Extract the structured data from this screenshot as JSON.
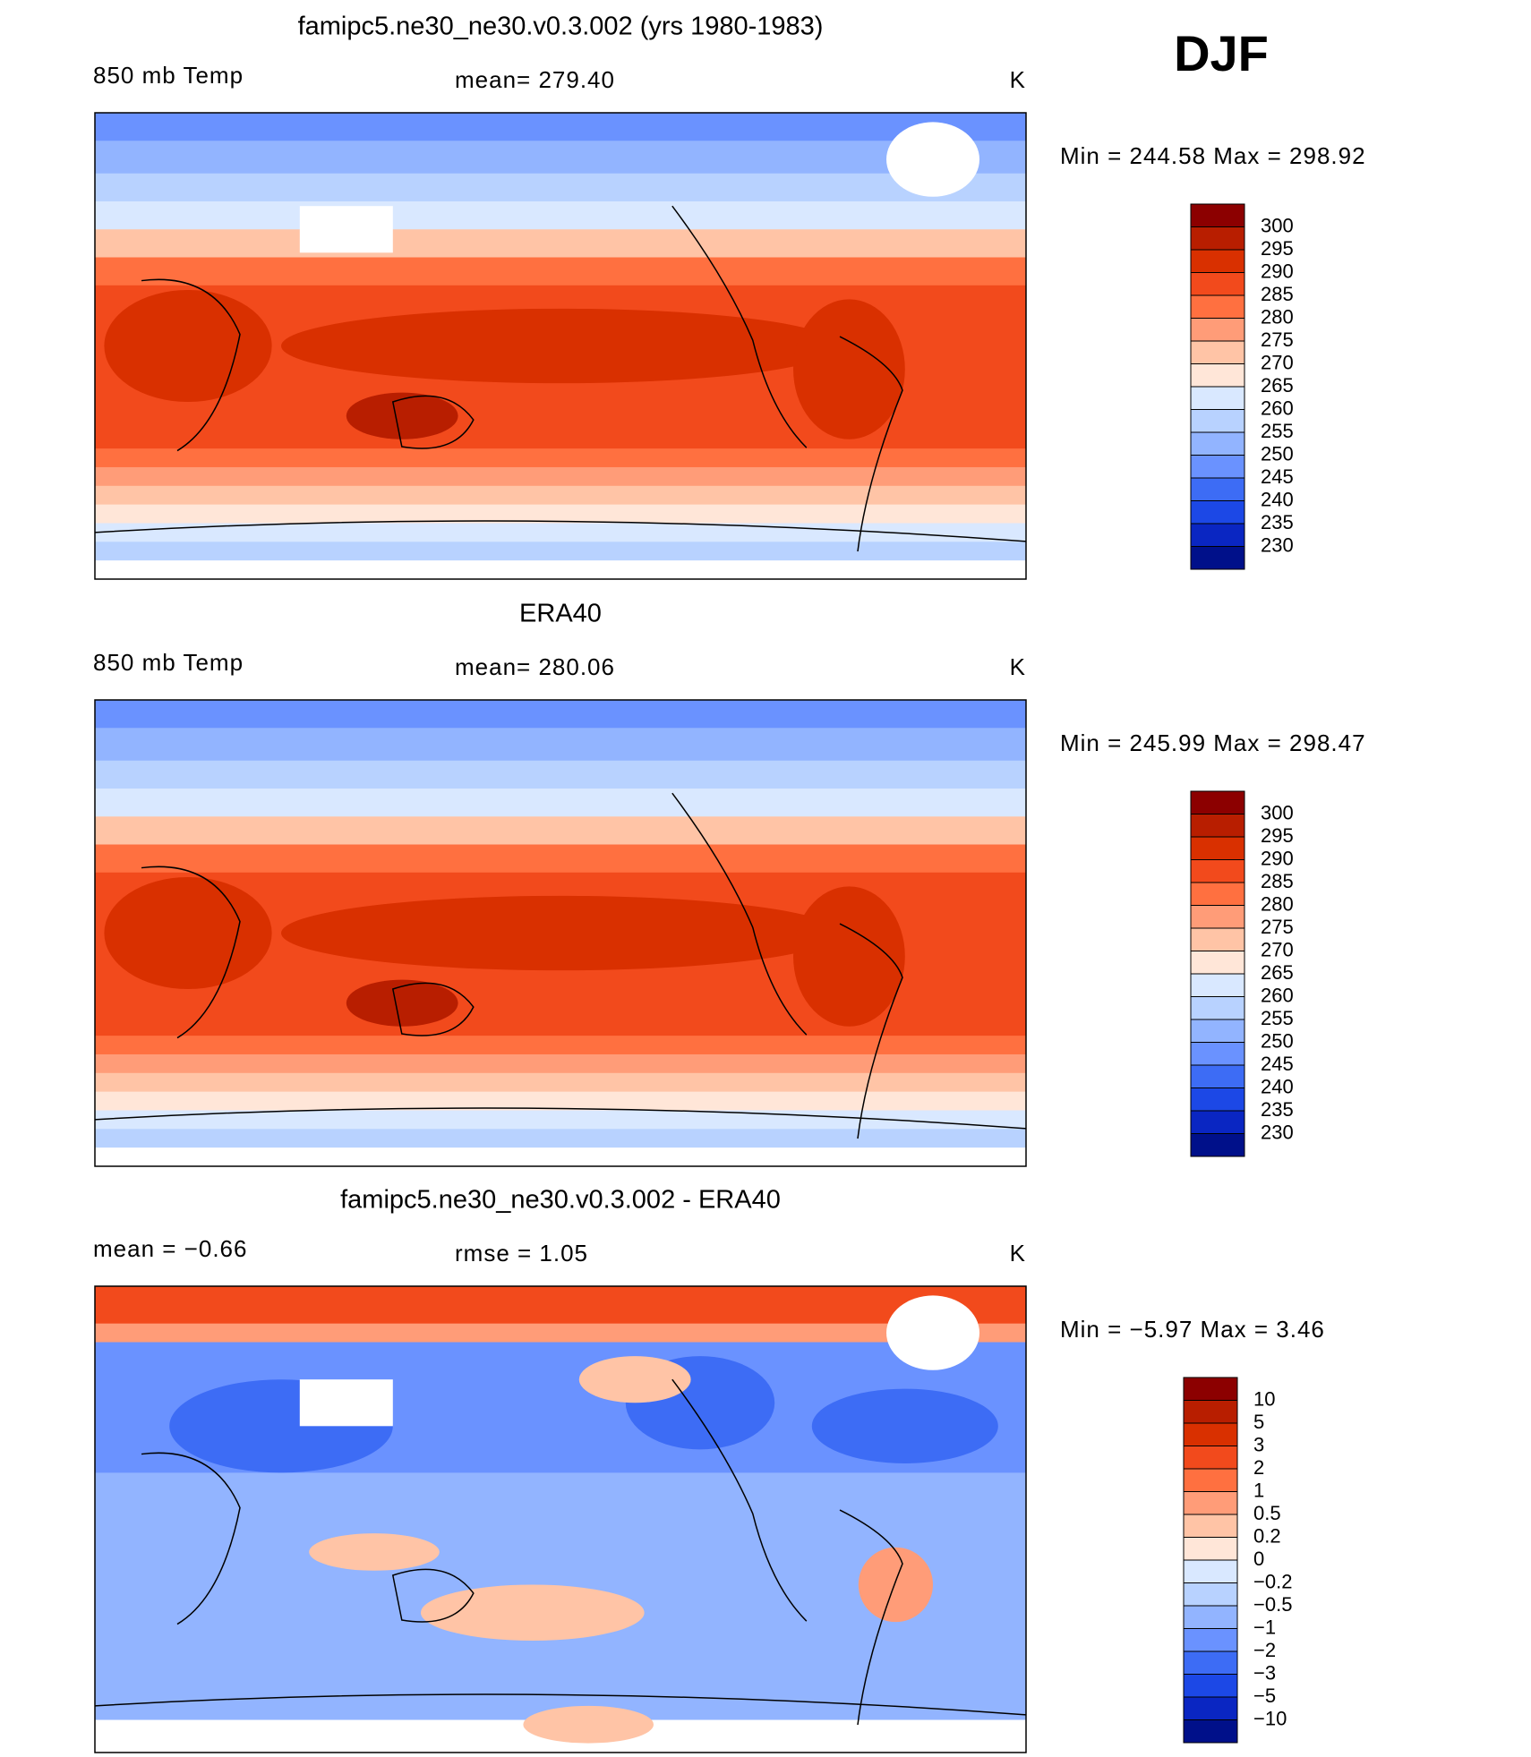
{
  "header": {
    "season": "DJF"
  },
  "panels": [
    {
      "title": "famipc5.ne30_ne30.v0.3.002 (yrs 1980-1983)",
      "left_label": "850 mb Temp",
      "center_label": "mean= 279.40",
      "units": "K",
      "range_label": "Min = 244.58 Max = 298.92",
      "colorbar": {
        "levels": [
          "300",
          "295",
          "290",
          "285",
          "280",
          "275",
          "270",
          "265",
          "260",
          "255",
          "250",
          "245",
          "240",
          "235",
          "230"
        ],
        "colors": [
          "#8c0000",
          "#b81e00",
          "#d93000",
          "#f24a1c",
          "#ff7040",
          "#ff9c78",
          "#ffc4a6",
          "#ffe6d8",
          "#d9e8ff",
          "#b8d2ff",
          "#92b4ff",
          "#6a92ff",
          "#3d6cf5",
          "#1c48e6",
          "#0a26c2",
          "#00108a"
        ]
      }
    },
    {
      "title": "ERA40",
      "left_label": "850 mb Temp",
      "center_label": "mean= 280.06",
      "units": "K",
      "range_label": "Min = 245.99 Max = 298.47",
      "colorbar": {
        "levels": [
          "300",
          "295",
          "290",
          "285",
          "280",
          "275",
          "270",
          "265",
          "260",
          "255",
          "250",
          "245",
          "240",
          "235",
          "230"
        ],
        "colors": [
          "#8c0000",
          "#b81e00",
          "#d93000",
          "#f24a1c",
          "#ff7040",
          "#ff9c78",
          "#ffc4a6",
          "#ffe6d8",
          "#d9e8ff",
          "#b8d2ff",
          "#92b4ff",
          "#6a92ff",
          "#3d6cf5",
          "#1c48e6",
          "#0a26c2",
          "#00108a"
        ]
      }
    },
    {
      "title": "famipc5.ne30_ne30.v0.3.002 - ERA40",
      "left_label": "mean =   −0.66",
      "center_label": "rmse =    1.05",
      "units": "K",
      "range_label": "Min =   −5.97 Max =    3.46",
      "colorbar": {
        "levels": [
          "10",
          "5",
          "3",
          "2",
          "1",
          "0.5",
          "0.2",
          "0",
          "−0.2",
          "−0.5",
          "−1",
          "−2",
          "−3",
          "−5",
          "−10"
        ],
        "colors": [
          "#8c0000",
          "#b81e00",
          "#d93000",
          "#f24a1c",
          "#ff7040",
          "#ff9c78",
          "#ffc4a6",
          "#ffe6d8",
          "#d9e8ff",
          "#b8d2ff",
          "#92b4ff",
          "#6a92ff",
          "#3d6cf5",
          "#1c48e6",
          "#0a26c2",
          "#00108a"
        ]
      }
    }
  ]
}
